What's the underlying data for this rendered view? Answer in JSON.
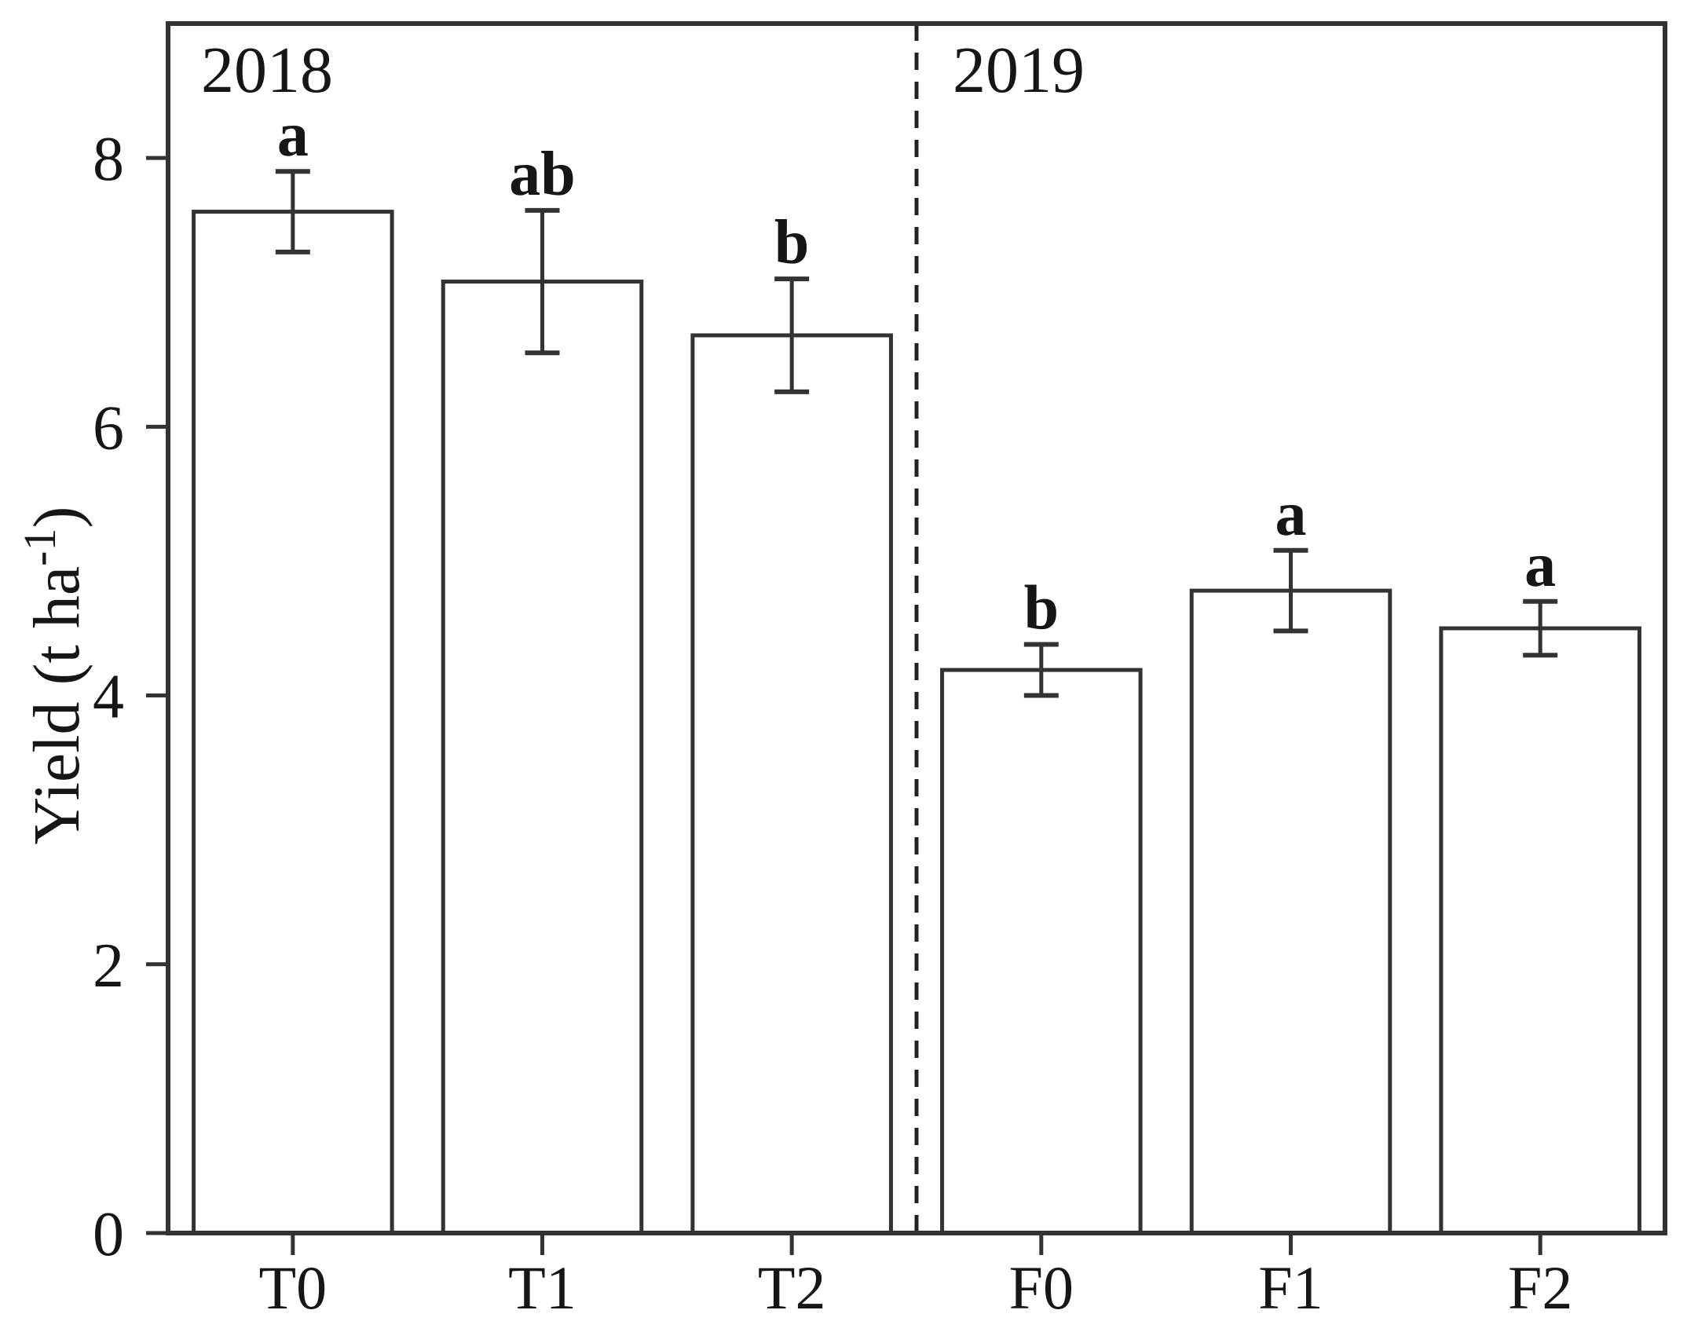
{
  "figure": {
    "background": "#ffffff",
    "ink_color": "#333333",
    "text_color": "#161616"
  },
  "chart_data": {
    "type": "bar",
    "title": "",
    "xlabel": "",
    "ylabel": "Yield (t ha-1)",
    "ylabel_parts": {
      "prefix": "Yield (t ha",
      "superscript": "-1",
      "suffix": ")"
    },
    "categories": [
      "T0",
      "T1",
      "T2",
      "F0",
      "F1",
      "F2"
    ],
    "values": [
      7.6,
      7.08,
      6.68,
      4.19,
      4.78,
      4.5
    ],
    "errors": [
      0.3,
      0.53,
      0.42,
      0.19,
      0.3,
      0.2
    ],
    "sig_letters": [
      "a",
      "ab",
      "b",
      "b",
      "a",
      "a"
    ],
    "groups": [
      {
        "label": "2018",
        "categories": [
          "T0",
          "T1",
          "T2"
        ]
      },
      {
        "label": "2019",
        "categories": [
          "F0",
          "F1",
          "F2"
        ]
      }
    ],
    "divider_after_index": 2,
    "ylim": [
      0,
      9
    ],
    "yticks": [
      0,
      2,
      4,
      6,
      8
    ],
    "grid": false,
    "legend": false,
    "bar_fill": "#ffffff",
    "bar_edge": "#333333"
  }
}
